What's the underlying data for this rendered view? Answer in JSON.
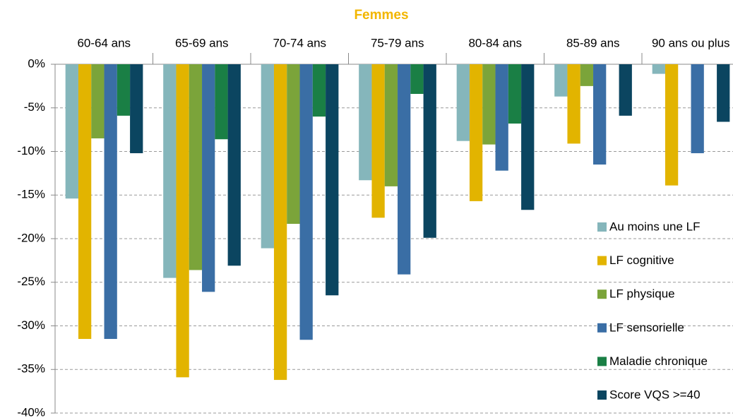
{
  "chart_data": {
    "type": "bar",
    "title": "Femmes",
    "categories": [
      "60-64 ans",
      "65-69 ans",
      "70-74 ans",
      "75-79 ans",
      "80-84 ans",
      "85-89 ans",
      "90 ans ou plus"
    ],
    "series": [
      {
        "name": "Au moins une LF",
        "color": "#85b6bb",
        "values": [
          -15.4,
          -24.5,
          -21.1,
          -13.3,
          -8.8,
          -3.7,
          -1.1
        ]
      },
      {
        "name": "LF cognitive",
        "color": "#e2b400",
        "values": [
          -31.5,
          -35.9,
          -36.2,
          -17.6,
          -15.7,
          -9.1,
          -13.9
        ]
      },
      {
        "name": "LF physique",
        "color": "#7ba43a",
        "values": [
          -8.5,
          -23.6,
          -18.3,
          -14.0,
          -9.2,
          -2.5,
          null
        ]
      },
      {
        "name": "LF sensorielle",
        "color": "#3a6ea5",
        "values": [
          -31.5,
          -26.1,
          -31.6,
          -24.1,
          -12.2,
          -11.5,
          -10.2
        ]
      },
      {
        "name": "Maladie chronique",
        "color": "#1a7f45",
        "values": [
          -5.9,
          -8.6,
          -6.0,
          -3.4,
          -6.8,
          null,
          null
        ]
      },
      {
        "name": "Score VQS >=40",
        "color": "#0b4560",
        "values": [
          -10.2,
          -23.1,
          -26.5,
          -19.9,
          -16.7,
          -5.9,
          -6.6
        ]
      }
    ],
    "ylim": [
      0,
      -40
    ],
    "yticks": [
      {
        "value": 0,
        "label": "0%"
      },
      {
        "value": -5,
        "label": "-5%"
      },
      {
        "value": -10,
        "label": "-10%"
      },
      {
        "value": -15,
        "label": "-15%"
      },
      {
        "value": -20,
        "label": "-20%"
      },
      {
        "value": -25,
        "label": "-25%"
      },
      {
        "value": -30,
        "label": "-30%"
      },
      {
        "value": -35,
        "label": "-35%"
      },
      {
        "value": -40,
        "label": "-40%"
      }
    ],
    "grid": true,
    "legend": "right"
  }
}
